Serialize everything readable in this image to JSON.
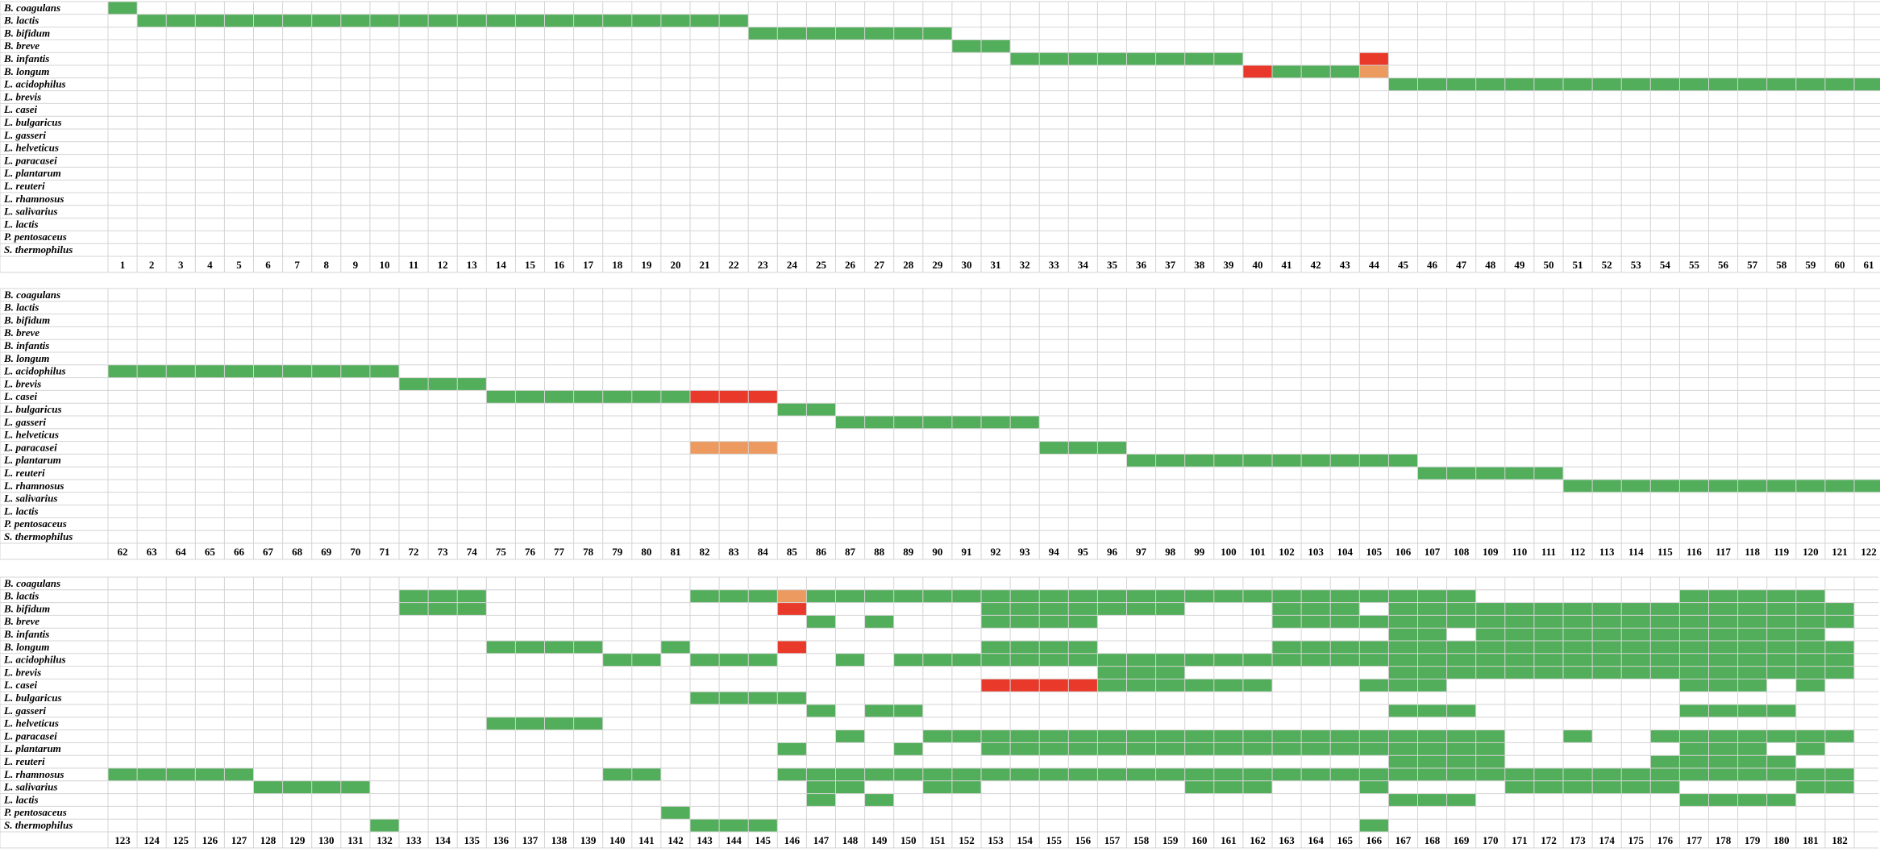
{
  "colors": {
    "green": "#52ae5b",
    "red": "#e8392a",
    "orange": "#ec9a5f",
    "gridline": "#d4d4d4"
  },
  "species": [
    "B. coagulans",
    "B. lactis",
    "B. bifidum",
    "B. breve",
    "B. infantis",
    "B. longum",
    "L. acidophilus",
    "L. brevis",
    "L. casei",
    "L. bulgaricus",
    "L. gasseri",
    "L. helveticus",
    "L. paracasei",
    "L. plantarum",
    "L. reuteri",
    "L. rhamnosus",
    "L. salivarius",
    "L. lactis",
    "P. pentosaceus",
    "S. thermophilus"
  ],
  "panels": [
    {
      "col_start": 1,
      "col_count": 61,
      "cells": [
        [
          [
            1,
            1,
            "green"
          ]
        ],
        [
          [
            2,
            22,
            "green"
          ]
        ],
        [
          [
            23,
            29,
            "green"
          ]
        ],
        [
          [
            30,
            31,
            "green"
          ]
        ],
        [
          [
            32,
            39,
            "green"
          ],
          [
            44,
            44,
            "red"
          ]
        ],
        [
          [
            40,
            40,
            "red"
          ],
          [
            41,
            43,
            "green"
          ],
          [
            44,
            44,
            "orange"
          ]
        ],
        [
          [
            45,
            61,
            "green"
          ]
        ],
        [],
        [],
        [],
        [],
        [],
        [],
        [],
        [],
        [],
        [],
        [],
        [],
        []
      ]
    },
    {
      "col_start": 62,
      "col_count": 61,
      "cells": [
        [],
        [],
        [],
        [],
        [],
        [],
        [
          [
            62,
            71,
            "green"
          ]
        ],
        [
          [
            72,
            74,
            "green"
          ]
        ],
        [
          [
            75,
            81,
            "green"
          ],
          [
            82,
            84,
            "red"
          ]
        ],
        [
          [
            85,
            86,
            "green"
          ]
        ],
        [
          [
            87,
            93,
            "green"
          ]
        ],
        [],
        [
          [
            82,
            84,
            "orange"
          ],
          [
            94,
            96,
            "green"
          ]
        ],
        [
          [
            97,
            106,
            "green"
          ]
        ],
        [
          [
            107,
            111,
            "green"
          ]
        ],
        [
          [
            112,
            122,
            "green"
          ]
        ],
        [],
        [],
        [],
        []
      ]
    },
    {
      "col_start": 123,
      "col_count": 60,
      "cells": [
        [],
        [
          [
            133,
            135,
            "green"
          ],
          [
            143,
            145,
            "green"
          ],
          [
            146,
            146,
            "orange"
          ],
          [
            147,
            169,
            "green"
          ],
          [
            177,
            181,
            "green"
          ]
        ],
        [
          [
            133,
            135,
            "green"
          ],
          [
            146,
            146,
            "red"
          ],
          [
            153,
            159,
            "green"
          ],
          [
            163,
            165,
            "green"
          ],
          [
            167,
            182,
            "green"
          ]
        ],
        [
          [
            147,
            147,
            "green"
          ],
          [
            149,
            149,
            "green"
          ],
          [
            153,
            156,
            "green"
          ],
          [
            163,
            182,
            "green"
          ]
        ],
        [
          [
            167,
            168,
            "green"
          ],
          [
            170,
            180,
            "green"
          ],
          [
            181,
            181,
            "green"
          ]
        ],
        [
          [
            136,
            139,
            "green"
          ],
          [
            142,
            142,
            "green"
          ],
          [
            146,
            146,
            "red"
          ],
          [
            153,
            156,
            "green"
          ],
          [
            163,
            182,
            "green"
          ]
        ],
        [
          [
            140,
            141,
            "green"
          ],
          [
            143,
            145,
            "green"
          ],
          [
            148,
            148,
            "green"
          ],
          [
            150,
            182,
            "green"
          ]
        ],
        [
          [
            157,
            159,
            "green"
          ],
          [
            167,
            182,
            "green"
          ]
        ],
        [
          [
            153,
            156,
            "red"
          ],
          [
            157,
            162,
            "green"
          ],
          [
            166,
            168,
            "green"
          ],
          [
            177,
            179,
            "green"
          ],
          [
            181,
            181,
            "green"
          ]
        ],
        [
          [
            143,
            146,
            "green"
          ]
        ],
        [
          [
            147,
            147,
            "green"
          ],
          [
            149,
            150,
            "green"
          ],
          [
            167,
            169,
            "green"
          ],
          [
            177,
            180,
            "green"
          ]
        ],
        [
          [
            136,
            139,
            "green"
          ]
        ],
        [
          [
            148,
            148,
            "green"
          ],
          [
            151,
            170,
            "green"
          ],
          [
            173,
            173,
            "green"
          ],
          [
            176,
            182,
            "green"
          ]
        ],
        [
          [
            146,
            146,
            "green"
          ],
          [
            150,
            150,
            "green"
          ],
          [
            153,
            170,
            "green"
          ],
          [
            177,
            179,
            "green"
          ],
          [
            181,
            181,
            "green"
          ]
        ],
        [
          [
            167,
            170,
            "green"
          ],
          [
            176,
            180,
            "green"
          ]
        ],
        [
          [
            123,
            127,
            "green"
          ],
          [
            140,
            141,
            "green"
          ],
          [
            146,
            182,
            "green"
          ]
        ],
        [
          [
            128,
            131,
            "green"
          ],
          [
            147,
            148,
            "green"
          ],
          [
            151,
            152,
            "green"
          ],
          [
            160,
            162,
            "green"
          ],
          [
            166,
            166,
            "green"
          ],
          [
            171,
            176,
            "green"
          ],
          [
            181,
            182,
            "green"
          ]
        ],
        [
          [
            147,
            147,
            "green"
          ],
          [
            149,
            149,
            "green"
          ],
          [
            167,
            169,
            "green"
          ],
          [
            177,
            180,
            "green"
          ]
        ],
        [
          [
            142,
            142,
            "green"
          ]
        ],
        [
          [
            132,
            132,
            "green"
          ],
          [
            143,
            145,
            "green"
          ],
          [
            166,
            166,
            "green"
          ]
        ]
      ]
    }
  ]
}
